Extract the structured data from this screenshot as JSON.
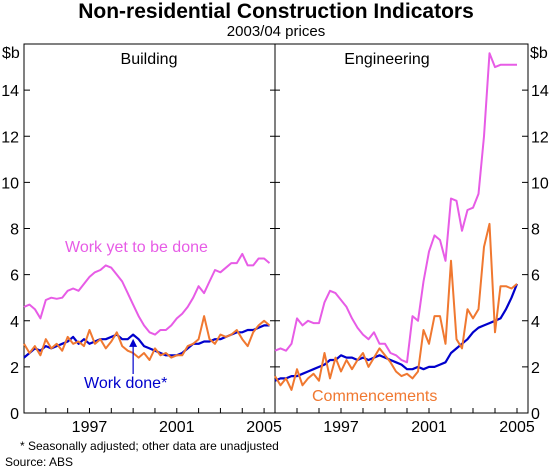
{
  "chart_data": {
    "type": "line",
    "title": "Non-residential Construction Indicators",
    "subtitle": "2003/04 prices",
    "y_unit_left": "$b",
    "y_unit_right": "$b",
    "ylim": [
      0,
      16
    ],
    "y_ticks": [
      0,
      2,
      4,
      6,
      8,
      10,
      12,
      14
    ],
    "x_ticks": [
      "1997",
      "2001",
      "2005"
    ],
    "x_tick_values": [
      1997,
      2001,
      2005
    ],
    "xlim": [
      1994.0,
      2005.5
    ],
    "grid": false,
    "footnote": "*   Seasonally adjusted; other data are unadjusted",
    "source": "Source: ABS",
    "colors": {
      "work_yet": "#e75ce6",
      "work_done": "#0000cc",
      "commencements": "#f07830"
    },
    "panels": [
      {
        "name": "Building",
        "annotations": [
          {
            "text": "Work yet to be done",
            "series": "work_yet"
          },
          {
            "text": "Work done*",
            "series": "work_done"
          }
        ],
        "series": [
          {
            "name": "Work yet to be done",
            "key": "work_yet",
            "x": [
              1994.0,
              1994.25,
              1994.5,
              1994.75,
              1995.0,
              1995.25,
              1995.5,
              1995.75,
              1996.0,
              1996.25,
              1996.5,
              1996.75,
              1997.0,
              1997.25,
              1997.5,
              1997.75,
              1998.0,
              1998.25,
              1998.5,
              1998.75,
              1999.0,
              1999.25,
              1999.5,
              1999.75,
              2000.0,
              2000.25,
              2000.5,
              2000.75,
              2001.0,
              2001.25,
              2001.5,
              2001.75,
              2002.0,
              2002.25,
              2002.5,
              2002.75,
              2003.0,
              2003.25,
              2003.5,
              2003.75,
              2004.0,
              2004.25,
              2004.5,
              2004.75,
              2005.0,
              2005.25
            ],
            "y": [
              4.6,
              4.7,
              4.5,
              4.1,
              4.9,
              5.0,
              4.95,
              5.0,
              5.3,
              5.4,
              5.3,
              5.6,
              5.9,
              6.1,
              6.2,
              6.4,
              6.3,
              6.0,
              5.7,
              5.2,
              4.7,
              4.2,
              3.8,
              3.5,
              3.4,
              3.6,
              3.6,
              3.8,
              4.1,
              4.3,
              4.6,
              5.0,
              5.5,
              5.2,
              5.7,
              6.2,
              6.1,
              6.3,
              6.5,
              6.5,
              6.9,
              6.4,
              6.4,
              6.7,
              6.7,
              6.5
            ]
          },
          {
            "name": "Work done",
            "key": "work_done",
            "x": [
              1994.0,
              1994.25,
              1994.5,
              1994.75,
              1995.0,
              1995.25,
              1995.5,
              1995.75,
              1996.0,
              1996.25,
              1996.5,
              1996.75,
              1997.0,
              1997.25,
              1997.5,
              1997.75,
              1998.0,
              1998.25,
              1998.5,
              1998.75,
              1999.0,
              1999.25,
              1999.5,
              1999.75,
              2000.0,
              2000.25,
              2000.5,
              2000.75,
              2001.0,
              2001.25,
              2001.5,
              2001.75,
              2002.0,
              2002.25,
              2002.5,
              2002.75,
              2003.0,
              2003.25,
              2003.5,
              2003.75,
              2004.0,
              2004.25,
              2004.5,
              2004.75,
              2005.0,
              2005.25
            ],
            "y": [
              2.4,
              2.6,
              2.8,
              2.7,
              2.9,
              2.8,
              2.9,
              3.0,
              3.1,
              3.3,
              3.0,
              3.2,
              3.0,
              3.1,
              3.2,
              3.2,
              3.3,
              3.4,
              3.2,
              3.2,
              3.4,
              3.2,
              2.9,
              2.8,
              2.7,
              2.6,
              2.5,
              2.5,
              2.5,
              2.6,
              2.8,
              3.0,
              3.0,
              3.1,
              3.1,
              3.2,
              3.2,
              3.3,
              3.4,
              3.5,
              3.5,
              3.6,
              3.6,
              3.7,
              3.8,
              3.8
            ]
          },
          {
            "name": "Commencements",
            "key": "commencements",
            "x": [
              1994.0,
              1994.25,
              1994.5,
              1994.75,
              1995.0,
              1995.25,
              1995.5,
              1995.75,
              1996.0,
              1996.25,
              1996.5,
              1996.75,
              1997.0,
              1997.25,
              1997.5,
              1997.75,
              1998.0,
              1998.25,
              1998.5,
              1998.75,
              1999.0,
              1999.25,
              1999.5,
              1999.75,
              2000.0,
              2000.25,
              2000.5,
              2000.75,
              2001.0,
              2001.25,
              2001.5,
              2001.75,
              2002.0,
              2002.25,
              2002.5,
              2002.75,
              2003.0,
              2003.25,
              2003.5,
              2003.75,
              2004.0,
              2004.25,
              2004.5,
              2004.75,
              2005.0,
              2005.25
            ],
            "y": [
              3.0,
              2.6,
              2.9,
              2.5,
              3.2,
              2.8,
              3.0,
              2.7,
              3.3,
              3.0,
              3.1,
              2.9,
              3.6,
              3.0,
              3.2,
              2.8,
              3.1,
              3.5,
              2.9,
              2.7,
              2.6,
              2.4,
              2.6,
              2.3,
              2.8,
              2.5,
              2.6,
              2.4,
              2.5,
              2.5,
              2.9,
              3.0,
              3.2,
              4.2,
              3.2,
              3.0,
              3.4,
              3.3,
              3.4,
              3.6,
              3.2,
              2.9,
              3.5,
              3.8,
              4.0,
              3.8
            ]
          }
        ]
      },
      {
        "name": "Engineering",
        "annotations": [
          {
            "text": "Commencements",
            "series": "commencements"
          }
        ],
        "series": [
          {
            "name": "Work yet to be done",
            "key": "work_yet",
            "x": [
              1994.0,
              1994.25,
              1994.5,
              1994.75,
              1995.0,
              1995.25,
              1995.5,
              1995.75,
              1996.0,
              1996.25,
              1996.5,
              1996.75,
              1997.0,
              1997.25,
              1997.5,
              1997.75,
              1998.0,
              1998.25,
              1998.5,
              1998.75,
              1999.0,
              1999.25,
              1999.5,
              1999.75,
              2000.0,
              2000.25,
              2000.5,
              2000.75,
              2001.0,
              2001.25,
              2001.5,
              2001.75,
              2002.0,
              2002.25,
              2002.5,
              2002.75,
              2003.0,
              2003.25,
              2003.5,
              2003.75,
              2004.0,
              2004.25,
              2004.5,
              2004.75,
              2005.0
            ],
            "y": [
              2.7,
              2.8,
              2.7,
              3.0,
              4.1,
              3.8,
              4.0,
              3.9,
              3.9,
              4.8,
              5.3,
              5.2,
              4.9,
              4.6,
              4.1,
              3.7,
              3.4,
              3.2,
              3.5,
              3.0,
              3.0,
              2.6,
              2.5,
              2.3,
              2.2,
              4.2,
              4.0,
              5.7,
              7.0,
              7.7,
              7.5,
              6.6,
              9.3,
              9.2,
              7.9,
              8.8,
              8.9,
              9.5,
              12.0,
              15.6,
              15.0,
              15.1,
              15.1,
              15.1,
              15.1
            ]
          },
          {
            "name": "Work done",
            "key": "work_done",
            "x": [
              1994.0,
              1994.25,
              1994.5,
              1994.75,
              1995.0,
              1995.25,
              1995.5,
              1995.75,
              1996.0,
              1996.25,
              1996.5,
              1996.75,
              1997.0,
              1997.25,
              1997.5,
              1997.75,
              1998.0,
              1998.25,
              1998.5,
              1998.75,
              1999.0,
              1999.25,
              1999.5,
              1999.75,
              2000.0,
              2000.25,
              2000.5,
              2000.75,
              2001.0,
              2001.25,
              2001.5,
              2001.75,
              2002.0,
              2002.25,
              2002.5,
              2002.75,
              2003.0,
              2003.25,
              2003.5,
              2003.75,
              2004.0,
              2004.25,
              2004.5,
              2004.75,
              2005.0
            ],
            "y": [
              1.4,
              1.5,
              1.5,
              1.6,
              1.6,
              1.7,
              1.8,
              1.9,
              2.0,
              2.1,
              2.3,
              2.3,
              2.5,
              2.4,
              2.4,
              2.3,
              2.4,
              2.3,
              2.4,
              2.5,
              2.4,
              2.3,
              2.2,
              2.1,
              1.9,
              1.9,
              2.0,
              1.9,
              2.0,
              2.0,
              2.1,
              2.2,
              2.6,
              2.8,
              3.0,
              3.2,
              3.5,
              3.7,
              3.8,
              3.9,
              4.0,
              4.1,
              4.5,
              5.0,
              5.6
            ]
          },
          {
            "name": "Commencements",
            "key": "commencements",
            "x": [
              1994.0,
              1994.25,
              1994.5,
              1994.75,
              1995.0,
              1995.25,
              1995.5,
              1995.75,
              1996.0,
              1996.25,
              1996.5,
              1996.75,
              1997.0,
              1997.25,
              1997.5,
              1997.75,
              1998.0,
              1998.25,
              1998.5,
              1998.75,
              1999.0,
              1999.25,
              1999.5,
              1999.75,
              2000.0,
              2000.25,
              2000.5,
              2000.75,
              2001.0,
              2001.25,
              2001.5,
              2001.75,
              2002.0,
              2002.25,
              2002.5,
              2002.75,
              2003.0,
              2003.25,
              2003.5,
              2003.75,
              2004.0,
              2004.25,
              2004.5,
              2004.75,
              2005.0
            ],
            "y": [
              1.6,
              1.2,
              1.5,
              1.0,
              1.9,
              1.2,
              1.5,
              1.7,
              1.4,
              2.6,
              1.5,
              2.4,
              1.8,
              2.3,
              1.9,
              2.3,
              2.6,
              2.0,
              2.4,
              2.8,
              2.5,
              2.2,
              1.8,
              1.6,
              1.7,
              1.5,
              1.8,
              3.6,
              3.0,
              4.2,
              4.2,
              3.0,
              6.6,
              3.2,
              2.8,
              4.5,
              4.1,
              4.5,
              7.2,
              8.2,
              3.5,
              5.5,
              5.5,
              5.4,
              5.6
            ]
          }
        ]
      }
    ]
  }
}
